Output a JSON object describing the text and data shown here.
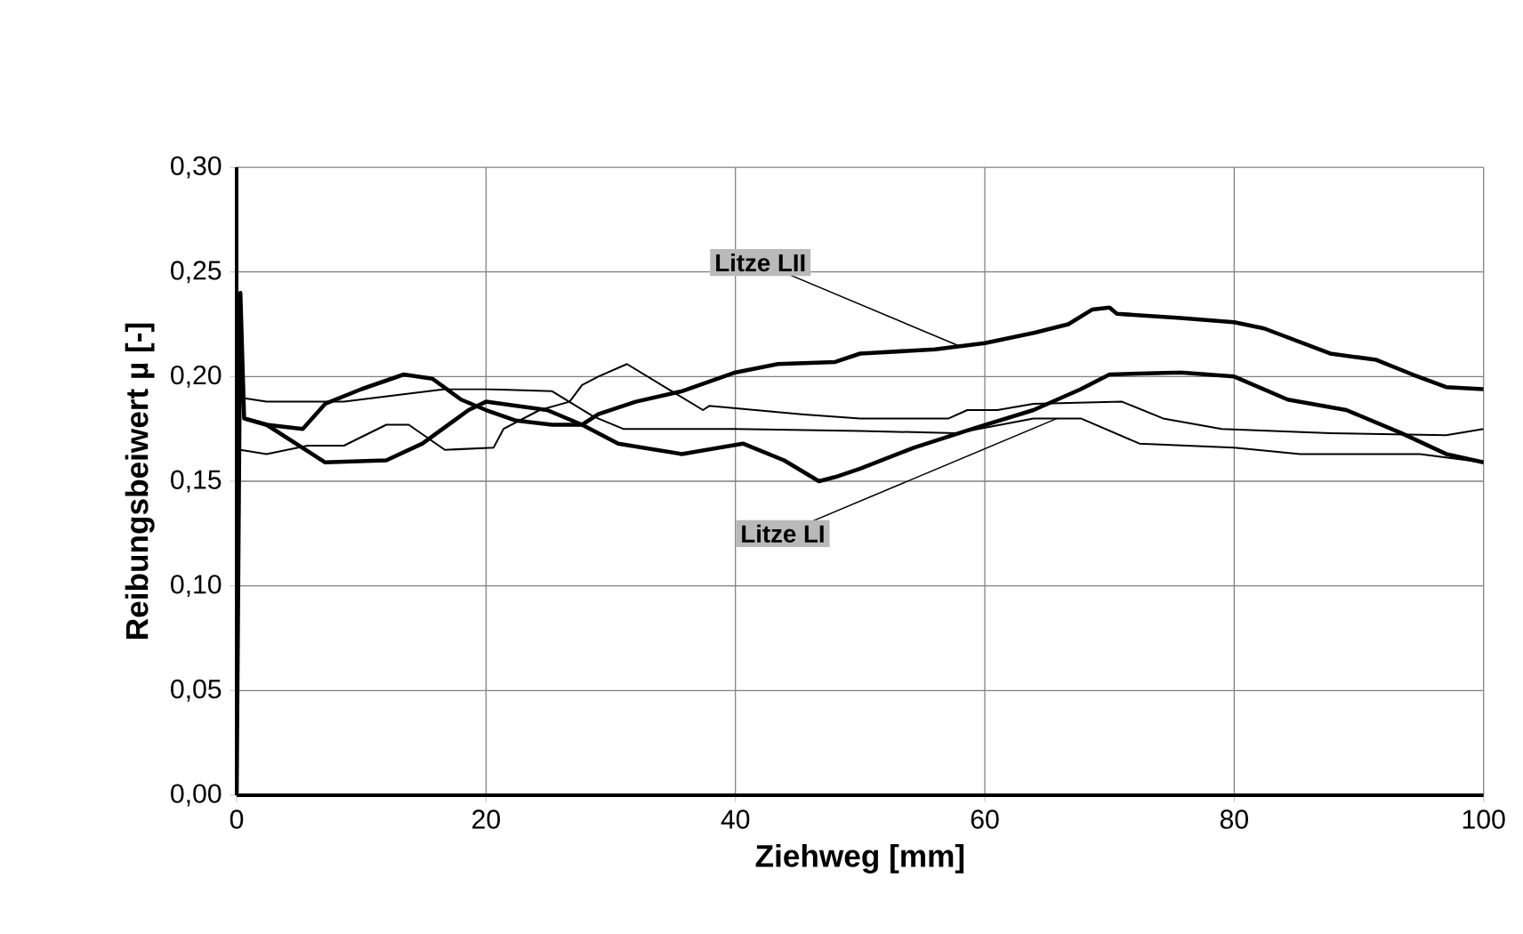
{
  "chart_data": {
    "type": "line",
    "xlabel": "Ziehweg [mm]",
    "ylabel": "Reibungsbeiwert µ [-]",
    "xlim": [
      0,
      100
    ],
    "xticks": [
      0,
      20,
      40,
      60,
      80,
      100
    ],
    "ylim": [
      0,
      0.3
    ],
    "yticks": [
      {
        "value": 0,
        "label": "0,00"
      },
      {
        "value": 0.05,
        "label": "0,05"
      },
      {
        "value": 0.1,
        "label": "0,10"
      },
      {
        "value": 0.15,
        "label": "0,15"
      },
      {
        "value": 0.2,
        "label": "0,20"
      },
      {
        "value": 0.25,
        "label": "0,25"
      },
      {
        "value": 0.3,
        "label": "0,30"
      }
    ],
    "grid": true,
    "marker": "none",
    "line_style": "solid",
    "annotations": [
      {
        "text": "Litze LII",
        "x": 58,
        "y": 0.2145
      },
      {
        "text": "Litze LI",
        "x": 65.8,
        "y": 0.18
      }
    ],
    "series": [
      {
        "color": "#000000",
        "x": [
          0,
          0.3,
          0.6,
          2.4,
          5.3,
          7.1,
          10,
          13.4,
          15.7,
          18,
          20,
          22.4,
          25.3,
          27.7,
          29,
          32,
          35.7,
          40,
          43.4,
          48,
          50,
          56,
          60,
          64,
          66.7,
          68.6,
          70,
          70.6,
          75.7,
          80,
          82.4,
          87.7,
          91.4,
          94.3,
          97,
          100
        ],
        "values": [
          0,
          0.24,
          0.18,
          0.177,
          0.175,
          0.187,
          0.194,
          0.201,
          0.199,
          0.189,
          0.184,
          0.179,
          0.177,
          0.177,
          0.182,
          0.188,
          0.193,
          0.202,
          0.206,
          0.207,
          0.211,
          0.213,
          0.216,
          0.221,
          0.225,
          0.232,
          0.233,
          0.23,
          0.228,
          0.226,
          0.223,
          0.211,
          0.208,
          0.201,
          0.195,
          0.194
        ]
      },
      {
        "color": "#000000",
        "x": [
          0.6,
          2.4,
          7.1,
          12,
          14.9,
          18.6,
          20,
          24.9,
          27.7,
          30.6,
          35.7,
          40.6,
          43.9,
          46.7,
          48,
          50,
          54.3,
          59,
          63.9,
          67.7,
          70,
          75.7,
          80,
          84.3,
          89,
          93.4,
          97,
          100
        ],
        "values": [
          0.18,
          0.177,
          0.159,
          0.16,
          0.168,
          0.184,
          0.188,
          0.184,
          0.177,
          0.168,
          0.163,
          0.168,
          0.16,
          0.15,
          0.152,
          0.156,
          0.166,
          0.175,
          0.184,
          0.194,
          0.201,
          0.202,
          0.2,
          0.189,
          0.184,
          0.173,
          0.163,
          0.159
        ]
      },
      {
        "color": "#000000",
        "x": [
          0.3,
          2.4,
          8.6,
          16.7,
          20,
          25.3,
          28.6,
          31,
          40,
          50,
          57.7,
          63.9,
          67.7,
          72.4,
          80,
          85.3,
          94.9,
          100
        ],
        "values": [
          0.19,
          0.188,
          0.188,
          0.194,
          0.194,
          0.193,
          0.181,
          0.175,
          0.175,
          0.174,
          0.173,
          0.18,
          0.18,
          0.168,
          0.166,
          0.163,
          0.163,
          0.159
        ]
      },
      {
        "color": "#000000",
        "x": [
          0.3,
          2.4,
          5.7,
          8.6,
          12,
          13.8,
          16.7,
          20.6,
          21.4,
          24.3,
          26.7,
          27.7,
          29,
          31.3,
          34.9,
          37.4,
          37.9,
          45.3,
          50,
          57.1,
          58.6,
          61,
          63.9,
          71,
          74.3,
          79,
          87.7,
          97,
          100
        ],
        "values": [
          0.165,
          0.163,
          0.167,
          0.167,
          0.177,
          0.177,
          0.165,
          0.166,
          0.175,
          0.184,
          0.188,
          0.196,
          0.2,
          0.206,
          0.193,
          0.184,
          0.186,
          0.182,
          0.18,
          0.18,
          0.184,
          0.184,
          0.187,
          0.188,
          0.18,
          0.175,
          0.173,
          0.172,
          0.175
        ]
      }
    ]
  }
}
